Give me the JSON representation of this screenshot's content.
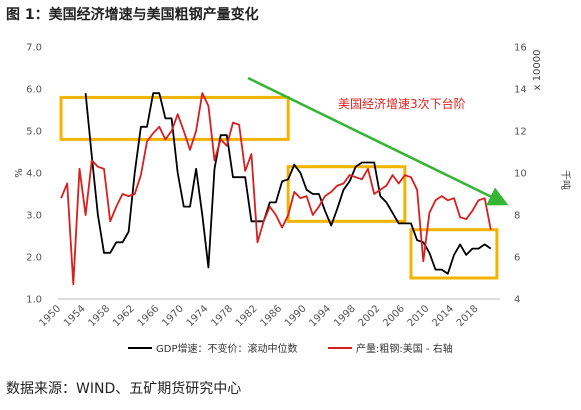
{
  "figure": {
    "title": "图 1：美国经济增速与美国粗钢产量变化",
    "source": "数据来源：WIND、五矿期货研究中心"
  },
  "chart_data": {
    "type": "line",
    "x": [
      1950,
      1951,
      1952,
      1953,
      1954,
      1955,
      1956,
      1957,
      1958,
      1959,
      1960,
      1961,
      1962,
      1963,
      1964,
      1965,
      1966,
      1967,
      1968,
      1969,
      1970,
      1971,
      1972,
      1973,
      1974,
      1975,
      1976,
      1977,
      1978,
      1979,
      1980,
      1981,
      1982,
      1983,
      1984,
      1985,
      1986,
      1987,
      1988,
      1989,
      1990,
      1991,
      1992,
      1993,
      1994,
      1995,
      1996,
      1997,
      1998,
      1999,
      2000,
      2001,
      2002,
      2003,
      2004,
      2005,
      2006,
      2007,
      2008,
      2009,
      2010,
      2011,
      2012,
      2013,
      2014,
      2015,
      2016,
      2017,
      2018,
      2019,
      2020
    ],
    "xticks": [
      "1950",
      "1954",
      "1958",
      "1962",
      "1966",
      "1970",
      "1974",
      "1978",
      "1982",
      "1986",
      "1990",
      "1994",
      "1998",
      "2002",
      "2006",
      "2010",
      "2014",
      "2018"
    ],
    "series": [
      {
        "name": "GDP增速：不变价：滚动中位数",
        "axis": "left",
        "color": "#000000",
        "values": [
          null,
          null,
          null,
          null,
          5.9,
          4.4,
          3.0,
          2.1,
          2.1,
          2.35,
          2.35,
          2.6,
          4.0,
          5.1,
          5.1,
          5.9,
          5.9,
          5.3,
          5.3,
          4.0,
          3.2,
          3.2,
          4.1,
          3.0,
          1.75,
          4.1,
          4.9,
          4.9,
          3.9,
          3.9,
          3.9,
          2.85,
          2.85,
          2.85,
          3.3,
          3.3,
          3.8,
          3.85,
          4.2,
          4.0,
          3.6,
          3.5,
          3.5,
          3.1,
          2.75,
          3.15,
          3.6,
          3.8,
          4.15,
          4.25,
          4.25,
          4.25,
          3.45,
          3.3,
          3.05,
          2.8,
          2.8,
          2.8,
          2.4,
          2.35,
          2.1,
          1.7,
          1.7,
          1.6,
          2.05,
          2.3,
          2.05,
          2.2,
          2.2,
          2.3,
          2.2
        ]
      },
      {
        "name": "产量:粗钢:美国 - 右轴",
        "axis": "right",
        "color": "#d81e1e",
        "values": [
          8.8,
          9.5,
          4.7,
          10.2,
          8.0,
          10.6,
          10.3,
          10.2,
          7.7,
          8.4,
          9.0,
          8.9,
          9.0,
          9.9,
          11.5,
          11.9,
          12.2,
          11.6,
          12.0,
          12.8,
          12.0,
          11.1,
          12.0,
          13.8,
          13.2,
          10.6,
          11.6,
          11.3,
          12.4,
          12.3,
          10.1,
          10.9,
          6.7,
          7.7,
          8.4,
          8.0,
          7.4,
          8.0,
          9.1,
          8.8,
          8.9,
          8.0,
          8.4,
          8.9,
          9.1,
          9.4,
          9.5,
          9.9,
          9.8,
          9.7,
          10.2,
          9.0,
          9.2,
          9.4,
          9.9,
          9.5,
          9.9,
          9.8,
          9.2,
          5.8,
          8.1,
          8.7,
          8.9,
          8.7,
          8.8,
          7.9,
          7.8,
          8.2,
          8.7,
          8.8,
          7.3
        ]
      }
    ],
    "y_left": {
      "label": "%",
      "min": 1.0,
      "max": 7.0,
      "ticks": [
        "1.0",
        "2.0",
        "3.0",
        "4.0",
        "5.0",
        "6.0",
        "7.0"
      ]
    },
    "y_right": {
      "label": "千吨",
      "unit_note": "x 10000",
      "min": 4,
      "max": 16,
      "ticks": [
        "4",
        "6",
        "8",
        "10",
        "12",
        "14",
        "16"
      ]
    },
    "annotation": {
      "text": "美国经济增速3次下台阶",
      "color": "#e0211f",
      "arrow_color": "#35b535"
    },
    "highlight_boxes": [
      {
        "x_start": 1950,
        "x_end": 1987,
        "y_low": 4.8,
        "y_high": 5.8,
        "axis": "left",
        "color": "#f2b400"
      },
      {
        "x_start": 1987,
        "x_end": 2006,
        "y_low": 2.85,
        "y_high": 4.15,
        "axis": "left",
        "color": "#f2b400"
      },
      {
        "x_start": 2007,
        "x_end": 2021,
        "y_low": 1.5,
        "y_high": 2.65,
        "axis": "left",
        "color": "#f2b400"
      }
    ],
    "legend_position": "bottom",
    "grid": false
  }
}
